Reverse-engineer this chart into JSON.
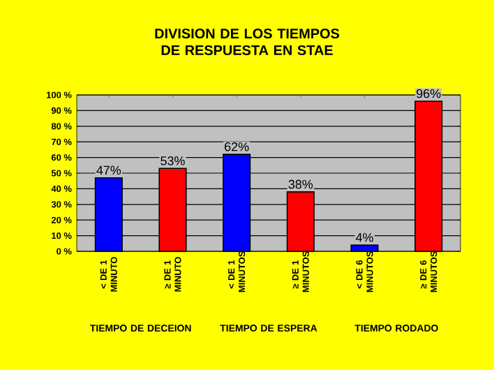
{
  "chart_data": {
    "type": "bar",
    "title": "DIVISION DE LOS TIEMPOS DE RESPUESTA EN STAE",
    "categories": [
      "< DE 1 MINUTO",
      "≥ DE 1 MINUTO",
      "< DE 1 MINUTOS",
      "≥ DE 1 MINUTOS",
      "< DE 6 MINUTOS",
      "≥ DE 6 MINUTOS"
    ],
    "values": [
      47,
      53,
      62,
      38,
      4,
      96
    ],
    "colors": [
      "#0000ff",
      "#ff0000",
      "#0000ff",
      "#ff0000",
      "#0000ff",
      "#ff0000"
    ],
    "value_labels": [
      "47%",
      "53%",
      "62%",
      "38%",
      "4%",
      "96%"
    ],
    "ylim": [
      0,
      100
    ],
    "yticks": [
      {
        "value": 0,
        "label": "0 %"
      },
      {
        "value": 10,
        "label": "10 %"
      },
      {
        "value": 20,
        "label": "20 %"
      },
      {
        "value": 30,
        "label": "30 %"
      },
      {
        "value": 40,
        "label": "40 %"
      },
      {
        "value": 50,
        "label": "50 %"
      },
      {
        "value": 60,
        "label": "60 %"
      },
      {
        "value": 70,
        "label": "70 %"
      },
      {
        "value": 80,
        "label": "80 %"
      },
      {
        "value": 90,
        "label": "90 %"
      },
      {
        "value": 100,
        "label": "100 %"
      }
    ],
    "grid": "y",
    "annotations": [
      "TIEMPO DE DECEION",
      "TIEMPO DE ESPERA",
      "TIEMPO RODADO"
    ]
  }
}
